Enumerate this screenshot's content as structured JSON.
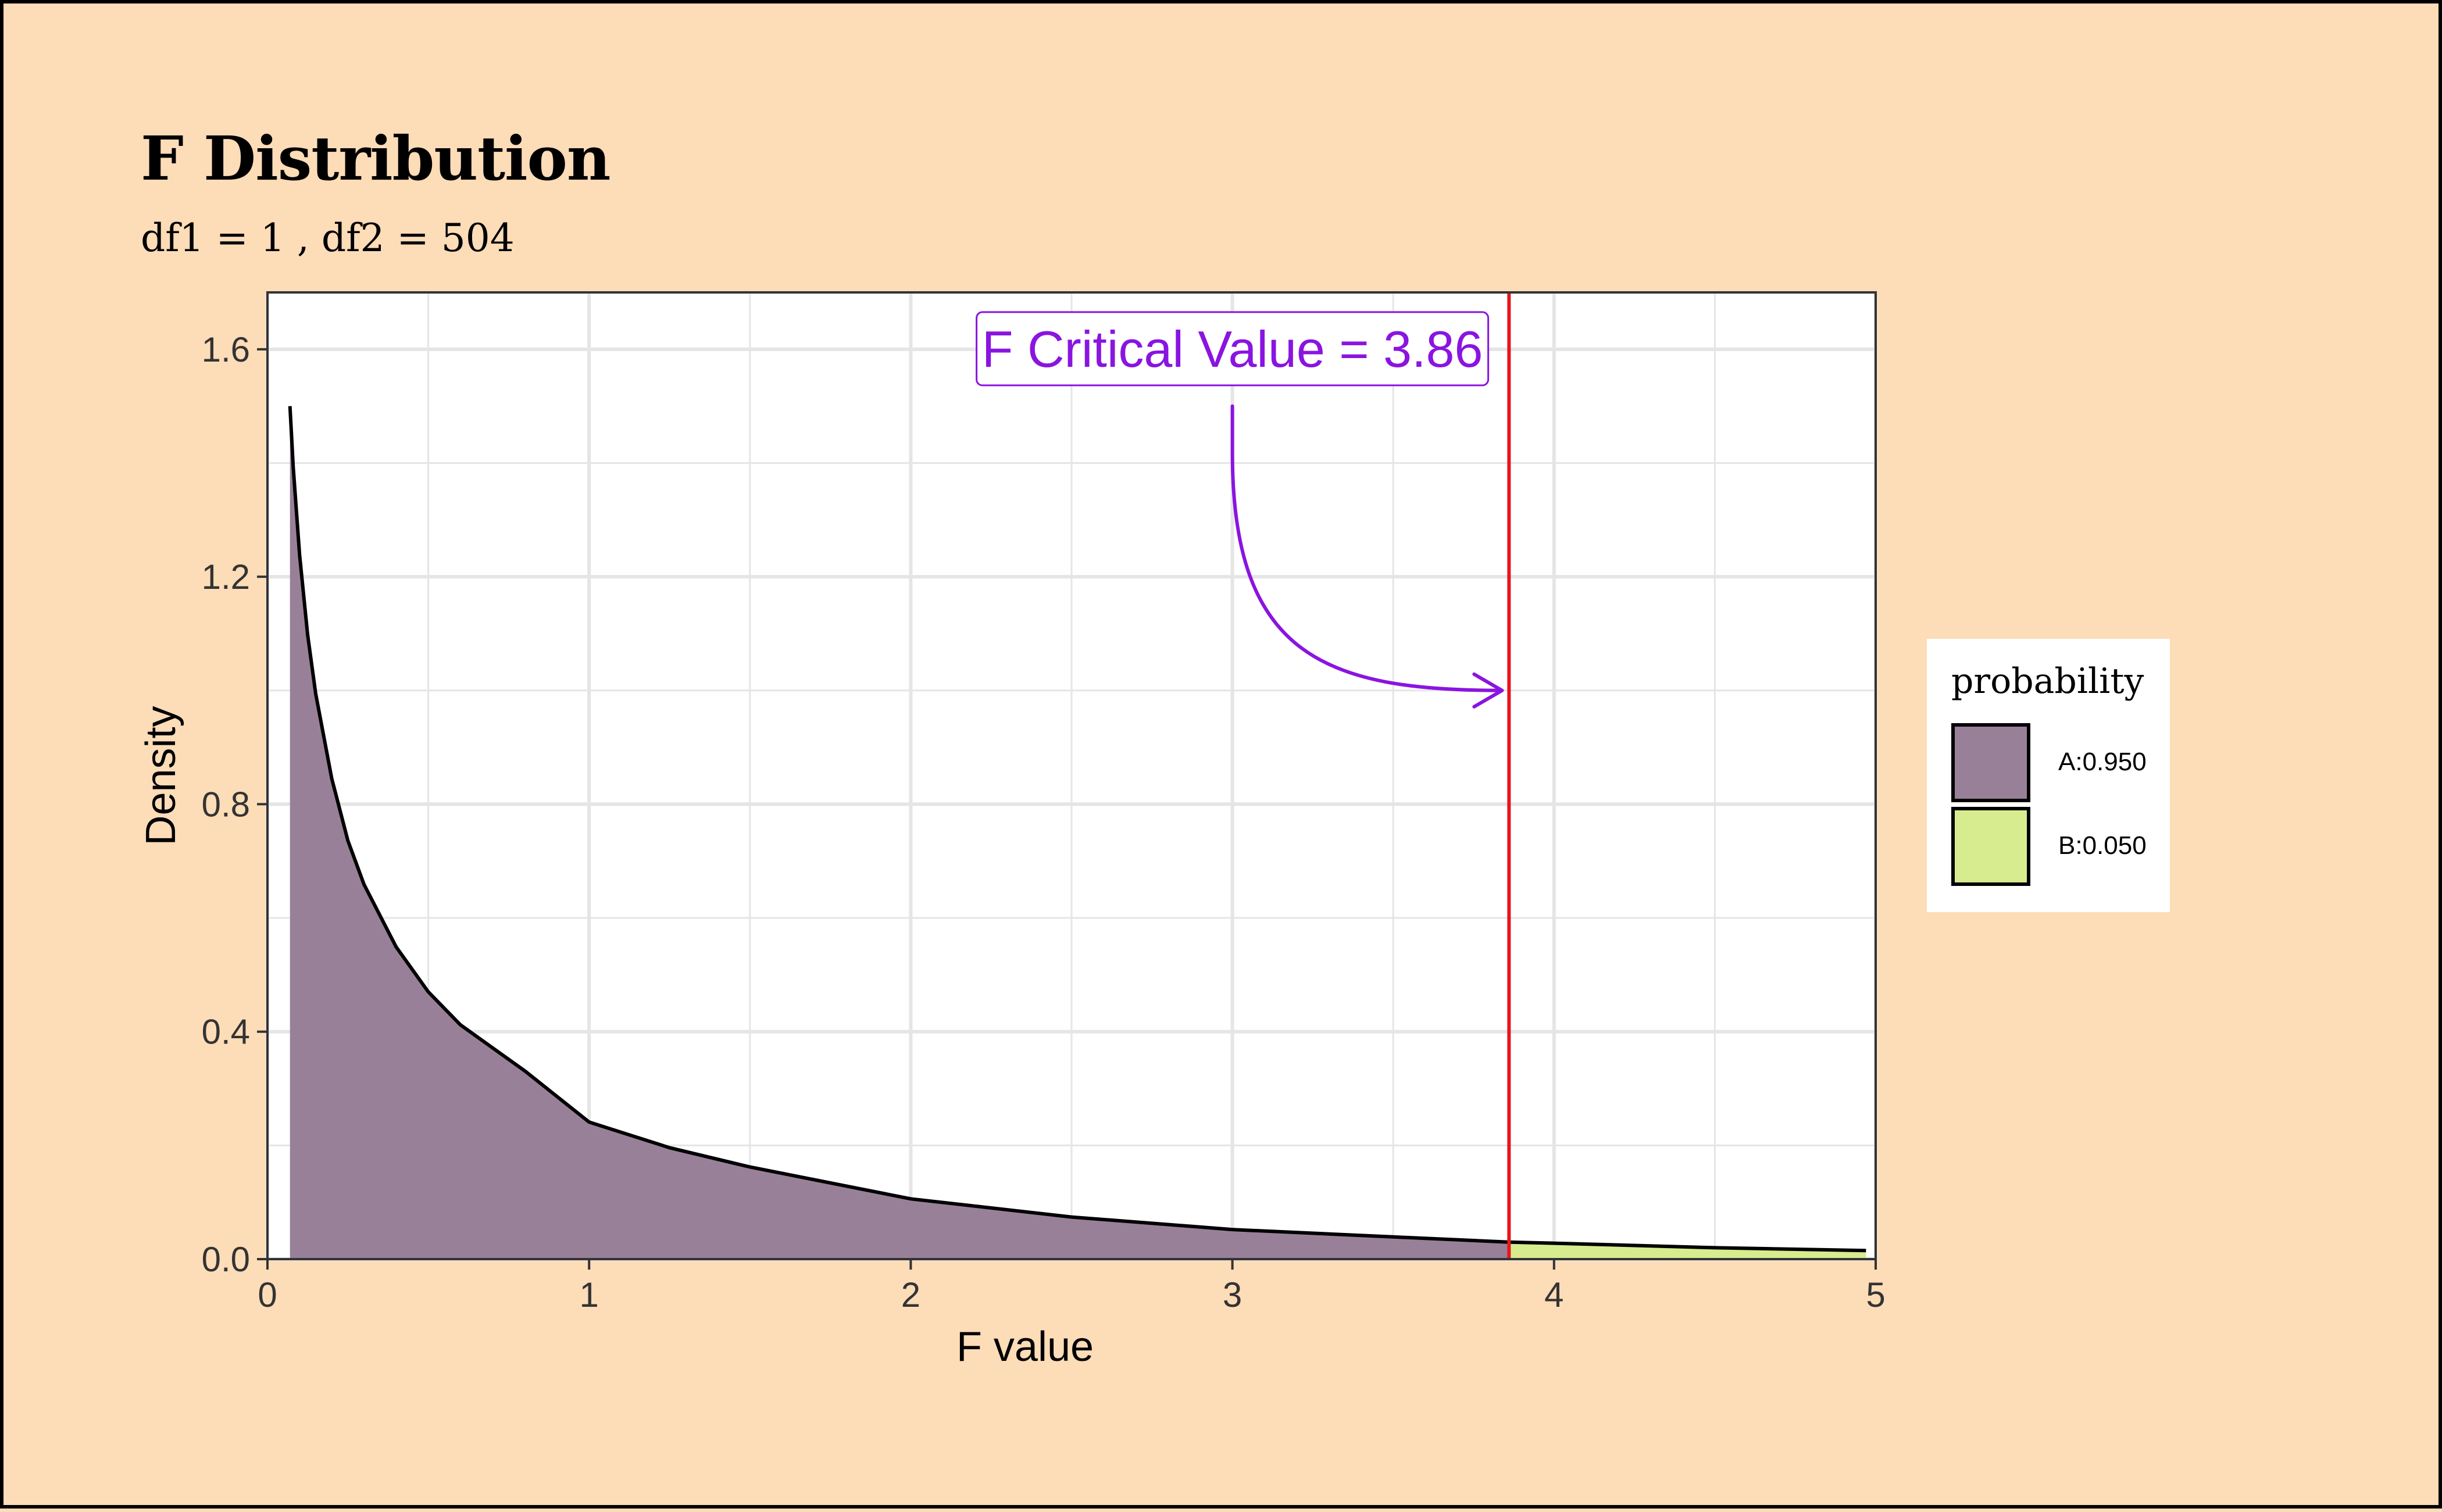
{
  "chart_data": {
    "type": "area",
    "title": "F Distribution",
    "subtitle": "df1 = 1 , df2 = 504",
    "xlabel": "F value",
    "ylabel": "Density",
    "xlim": [
      0,
      5
    ],
    "ylim": [
      0,
      1.7
    ],
    "x_ticks": [
      0,
      1,
      2,
      3,
      4,
      5
    ],
    "y_ticks": [
      0.0,
      0.4,
      0.8,
      1.2,
      1.6
    ],
    "x_tick_labels": [
      "0",
      "1",
      "2",
      "3",
      "4",
      "5"
    ],
    "y_tick_labels": [
      "0.0",
      "0.4",
      "0.8",
      "1.2",
      "1.6"
    ],
    "grid": true,
    "critical_value": 3.86,
    "annotation": "F Critical Value = 3.86",
    "legend": {
      "title": "probability",
      "position": "right",
      "items": [
        {
          "label": "A:0.950",
          "color": "#998099"
        },
        {
          "label": "B:0.050",
          "color": "#d6ec8e"
        }
      ]
    },
    "curve": {
      "x": [
        0.07,
        0.08,
        0.1,
        0.125,
        0.15,
        0.2,
        0.25,
        0.3,
        0.4,
        0.5,
        0.6,
        0.8,
        1.0,
        1.25,
        1.5,
        2.0,
        2.5,
        3.0,
        3.5,
        3.86,
        4.0,
        4.5,
        4.97
      ],
      "y": [
        1.5,
        1.393,
        1.238,
        1.098,
        0.994,
        0.845,
        0.736,
        0.659,
        0.549,
        0.47,
        0.412,
        0.331,
        0.241,
        0.196,
        0.162,
        0.106,
        0.074,
        0.052,
        0.039,
        0.03,
        0.028,
        0.02,
        0.015
      ]
    },
    "colors": {
      "curve": "#000000",
      "critical_line": "#e8141c",
      "annotation": "#8a14e0",
      "grid": "#e5e5e5",
      "region_a": "#998099",
      "region_b": "#d6ec8e"
    }
  }
}
